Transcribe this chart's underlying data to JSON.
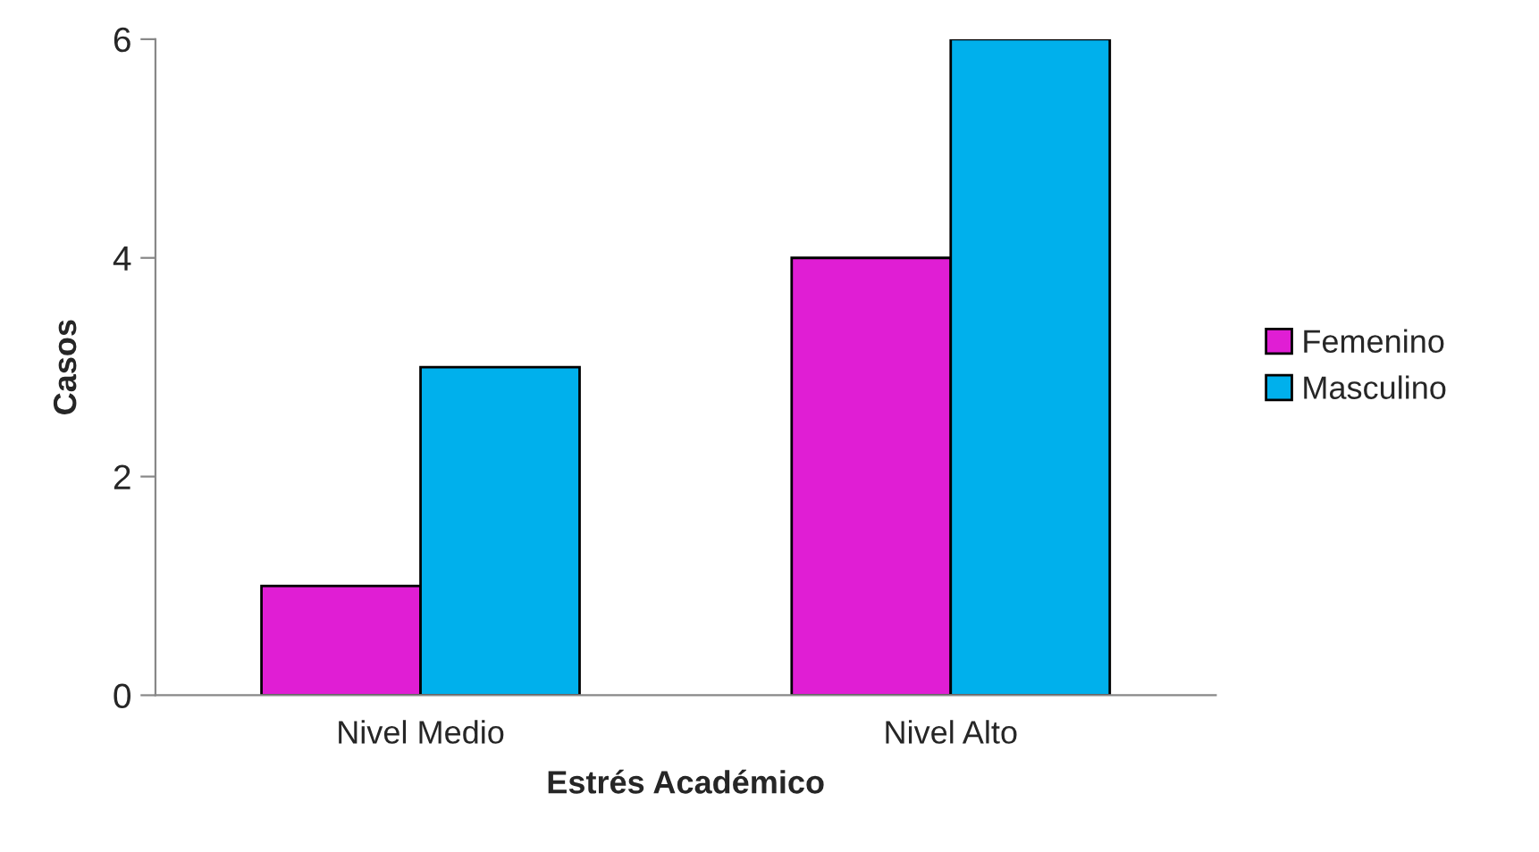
{
  "chart_data": {
    "type": "bar",
    "xlabel": "Estrés Académico",
    "ylabel": "Casos",
    "categories": [
      "Nivel Medio",
      "Nivel Alto"
    ],
    "series": [
      {
        "name": "Femenino",
        "color": "#e01ed4",
        "values": [
          1,
          4
        ]
      },
      {
        "name": "Masculino",
        "color": "#00b0ec",
        "values": [
          3,
          6
        ]
      }
    ],
    "ylim": [
      0,
      6
    ],
    "yticks": [
      0,
      2,
      4,
      6
    ],
    "grid": false,
    "legend": "right"
  }
}
